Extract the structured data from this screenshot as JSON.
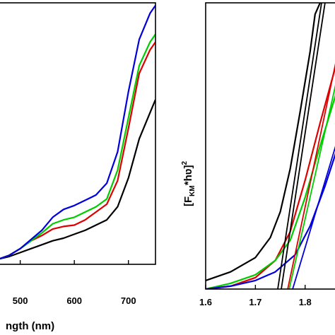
{
  "chart_data": [
    {
      "type": "line",
      "title": "",
      "xlabel": "ngth (nm)",
      "ylabel": "",
      "xlim": [
        460,
        750
      ],
      "ylim": [
        0,
        1
      ],
      "x_ticks": [
        500,
        600,
        700
      ],
      "x_tick_labels": [
        "500",
        "600",
        "700"
      ],
      "grid": false,
      "legend": "none",
      "series": [
        {
          "color": "#000000",
          "points": [
            [
              460,
              0.02
            ],
            [
              480,
              0.03
            ],
            [
              500,
              0.045
            ],
            [
              520,
              0.06
            ],
            [
              540,
              0.075
            ],
            [
              560,
              0.09
            ],
            [
              580,
              0.1
            ],
            [
              600,
              0.115
            ],
            [
              620,
              0.13
            ],
            [
              640,
              0.15
            ],
            [
              660,
              0.17
            ],
            [
              680,
              0.22
            ],
            [
              700,
              0.33
            ],
            [
              720,
              0.48
            ],
            [
              740,
              0.58
            ],
            [
              750,
              0.63
            ]
          ]
        },
        {
          "color": "#dd0000",
          "points": [
            [
              460,
              0.02
            ],
            [
              480,
              0.035
            ],
            [
              500,
              0.06
            ],
            [
              520,
              0.09
            ],
            [
              540,
              0.11
            ],
            [
              560,
              0.135
            ],
            [
              580,
              0.145
            ],
            [
              600,
              0.15
            ],
            [
              620,
              0.17
            ],
            [
              640,
              0.2
            ],
            [
              660,
              0.23
            ],
            [
              680,
              0.32
            ],
            [
              700,
              0.52
            ],
            [
              720,
              0.73
            ],
            [
              740,
              0.82
            ],
            [
              750,
              0.85
            ]
          ]
        },
        {
          "color": "#00cc00",
          "points": [
            [
              460,
              0.02
            ],
            [
              480,
              0.035
            ],
            [
              500,
              0.06
            ],
            [
              520,
              0.09
            ],
            [
              540,
              0.12
            ],
            [
              560,
              0.155
            ],
            [
              580,
              0.17
            ],
            [
              600,
              0.18
            ],
            [
              620,
              0.2
            ],
            [
              640,
              0.22
            ],
            [
              660,
              0.25
            ],
            [
              680,
              0.36
            ],
            [
              700,
              0.56
            ],
            [
              720,
              0.76
            ],
            [
              740,
              0.85
            ],
            [
              750,
              0.88
            ]
          ]
        },
        {
          "color": "#0000dd",
          "points": [
            [
              460,
              0.02
            ],
            [
              480,
              0.035
            ],
            [
              500,
              0.06
            ],
            [
              520,
              0.095
            ],
            [
              540,
              0.13
            ],
            [
              560,
              0.18
            ],
            [
              580,
              0.21
            ],
            [
              600,
              0.225
            ],
            [
              620,
              0.245
            ],
            [
              640,
              0.265
            ],
            [
              660,
              0.31
            ],
            [
              680,
              0.43
            ],
            [
              700,
              0.66
            ],
            [
              720,
              0.86
            ],
            [
              740,
              0.96
            ],
            [
              750,
              0.99
            ]
          ]
        }
      ]
    },
    {
      "type": "line",
      "title": "",
      "xlabel": "",
      "ylabel": "[Fₖₘ*hʋ]²",
      "ylabel_main_open": "[F",
      "ylabel_sub": "KM",
      "ylabel_main_close": "*hʋ]",
      "ylabel_sup": "2",
      "xlim": [
        1.6,
        1.87
      ],
      "ylim": [
        0,
        1
      ],
      "x_ticks": [
        1.6,
        1.7,
        1.8
      ],
      "x_tick_labels": [
        "1.6",
        "1.7",
        "1.8"
      ],
      "grid": false,
      "legend": "none",
      "series": [
        {
          "color": "#000000",
          "points": [
            [
              1.6,
              0.03
            ],
            [
              1.65,
              0.06
            ],
            [
              1.7,
              0.11
            ],
            [
              1.73,
              0.18
            ],
            [
              1.75,
              0.27
            ],
            [
              1.77,
              0.42
            ],
            [
              1.79,
              0.62
            ],
            [
              1.81,
              0.83
            ],
            [
              1.82,
              0.96
            ],
            [
              1.83,
              1.0
            ]
          ]
        },
        {
          "color": "#dd0000",
          "points": [
            [
              1.6,
              0.0
            ],
            [
              1.65,
              0.01
            ],
            [
              1.7,
              0.04
            ],
            [
              1.74,
              0.1
            ],
            [
              1.77,
              0.2
            ],
            [
              1.8,
              0.38
            ],
            [
              1.83,
              0.58
            ],
            [
              1.86,
              0.77
            ],
            [
              1.87,
              0.83
            ]
          ]
        },
        {
          "color": "#00cc00",
          "points": [
            [
              1.6,
              0.0
            ],
            [
              1.65,
              0.02
            ],
            [
              1.7,
              0.05
            ],
            [
              1.74,
              0.1
            ],
            [
              1.77,
              0.17
            ],
            [
              1.8,
              0.32
            ],
            [
              1.83,
              0.5
            ],
            [
              1.86,
              0.67
            ],
            [
              1.87,
              0.73
            ]
          ]
        },
        {
          "color": "#0000dd",
          "points": [
            [
              1.6,
              0.0
            ],
            [
              1.65,
              0.01
            ],
            [
              1.7,
              0.03
            ],
            [
              1.74,
              0.06
            ],
            [
              1.78,
              0.12
            ],
            [
              1.81,
              0.22
            ],
            [
              1.84,
              0.36
            ],
            [
              1.87,
              0.52
            ]
          ]
        },
        {
          "color": "#000000",
          "dash": "line",
          "points": [
            [
              1.745,
              0.0
            ],
            [
              1.833,
              1.0
            ]
          ]
        },
        {
          "color": "#000000",
          "dash": "line",
          "points": [
            [
              1.752,
              0.0
            ],
            [
              1.84,
              1.0
            ]
          ]
        },
        {
          "color": "#dd0000",
          "dash": "line",
          "points": [
            [
              1.765,
              0.0
            ],
            [
              1.87,
              0.86
            ]
          ]
        },
        {
          "color": "#00cc00",
          "dash": "line",
          "points": [
            [
              1.768,
              0.0
            ],
            [
              1.87,
              0.78
            ]
          ]
        },
        {
          "color": "#0000dd",
          "dash": "line",
          "points": [
            [
              1.775,
              0.0
            ],
            [
              1.87,
              0.55
            ]
          ]
        }
      ]
    }
  ]
}
